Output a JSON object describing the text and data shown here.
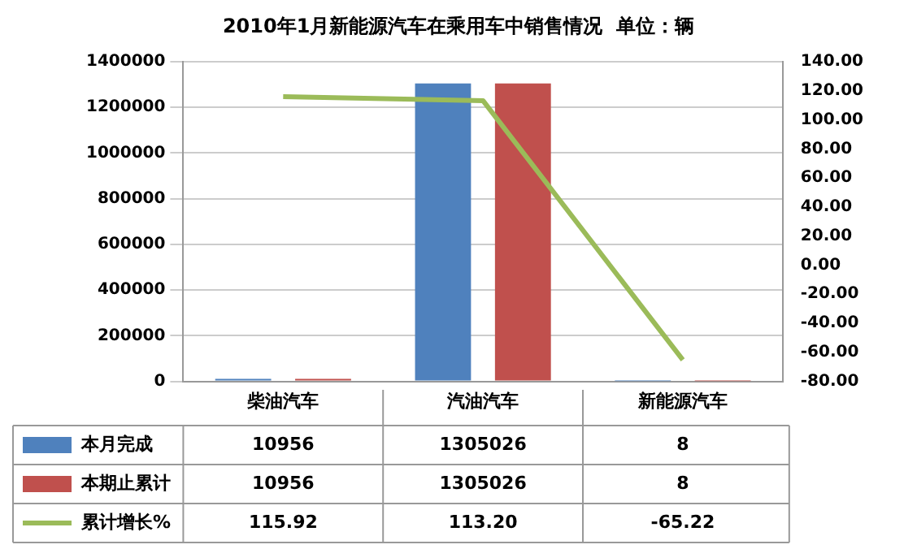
{
  "chart_data": {
    "type": "bar",
    "title": "2010年1月新能源汽车在乘用车中销售情况  单位：辆",
    "categories": [
      "柴油汽车",
      "汽油汽车",
      "新能源汽车"
    ],
    "series": [
      {
        "name": "本月完成",
        "color": "#4f81bd",
        "values": [
          10956,
          1305026,
          8
        ],
        "value_labels": [
          "10956",
          "1305026",
          "8"
        ]
      },
      {
        "name": "本期止累计",
        "color": "#c0504d",
        "values": [
          10956,
          1305026,
          8
        ],
        "value_labels": [
          "10956",
          "1305026",
          "8"
        ]
      },
      {
        "name": "累计增长%",
        "type": "line",
        "axis": "y2",
        "color": "#9bbb59",
        "values": [
          115.92,
          113.2,
          -65.22
        ],
        "value_labels": [
          "115.92",
          "113.20",
          "-65.22"
        ]
      }
    ],
    "ylim": [
      0,
      1400000
    ],
    "yticks": [
      0,
      200000,
      400000,
      600000,
      800000,
      1000000,
      1200000,
      1400000
    ],
    "y2lim": [
      -80,
      140
    ],
    "y2ticks": [
      {
        "value": -80,
        "label": "-80.00"
      },
      {
        "value": -60,
        "label": "-60.00"
      },
      {
        "value": -40,
        "label": "-40.00"
      },
      {
        "value": -20,
        "label": "-20.00"
      },
      {
        "value": 0,
        "label": "0.00"
      },
      {
        "value": 20,
        "label": "20.00"
      },
      {
        "value": 40,
        "label": "40.00"
      },
      {
        "value": 60,
        "label": "60.00"
      },
      {
        "value": 80,
        "label": "80.00"
      },
      {
        "value": 100,
        "label": "100.00"
      },
      {
        "value": 120,
        "label": "120.00"
      },
      {
        "value": 140,
        "label": "140.00"
      }
    ],
    "grid": "y",
    "legend": "bottom",
    "marker": "none",
    "line_style": "solid"
  }
}
